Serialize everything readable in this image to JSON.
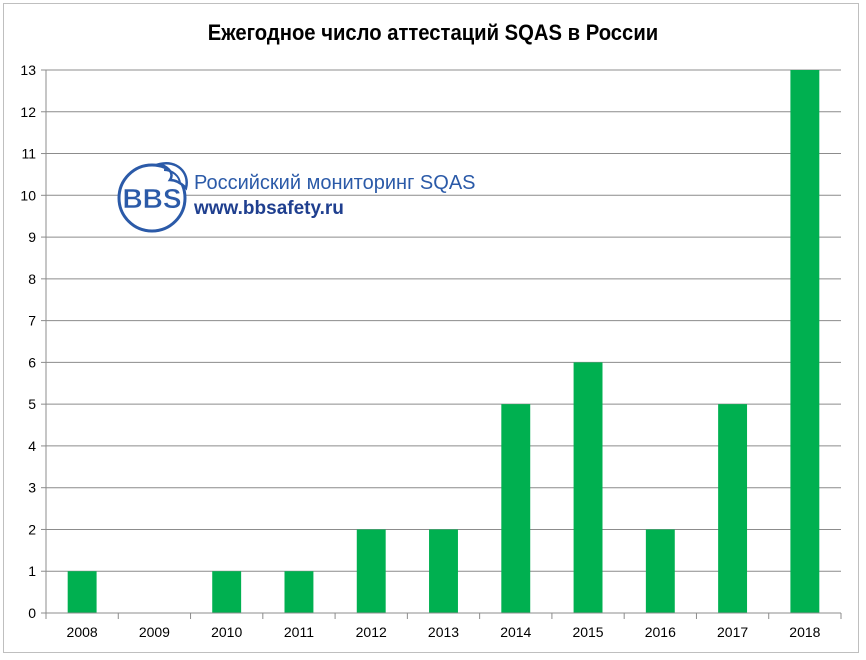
{
  "chart_data": {
    "type": "bar",
    "title": "Ежегодное число аттестаций SQAS в России",
    "categories": [
      "2008",
      "2009",
      "2010",
      "2011",
      "2012",
      "2013",
      "2014",
      "2015",
      "2016",
      "2017",
      "2018"
    ],
    "values": [
      1,
      0,
      1,
      1,
      2,
      2,
      5,
      6,
      2,
      5,
      13
    ],
    "ylim": [
      0,
      13
    ],
    "yticks": [
      "0",
      "1",
      "2",
      "3",
      "4",
      "5",
      "6",
      "7",
      "8",
      "9",
      "10",
      "11",
      "12",
      "13"
    ],
    "xlabel": "",
    "ylabel": "",
    "grid": true,
    "bar_color": "#00b050",
    "grid_color": "#8c8c8c"
  },
  "watermark": {
    "logo_text": "BBS",
    "line1": "Российский мониторинг SQAS",
    "line2": "www.bbsafety.ru",
    "color": "#2b5aa8"
  }
}
